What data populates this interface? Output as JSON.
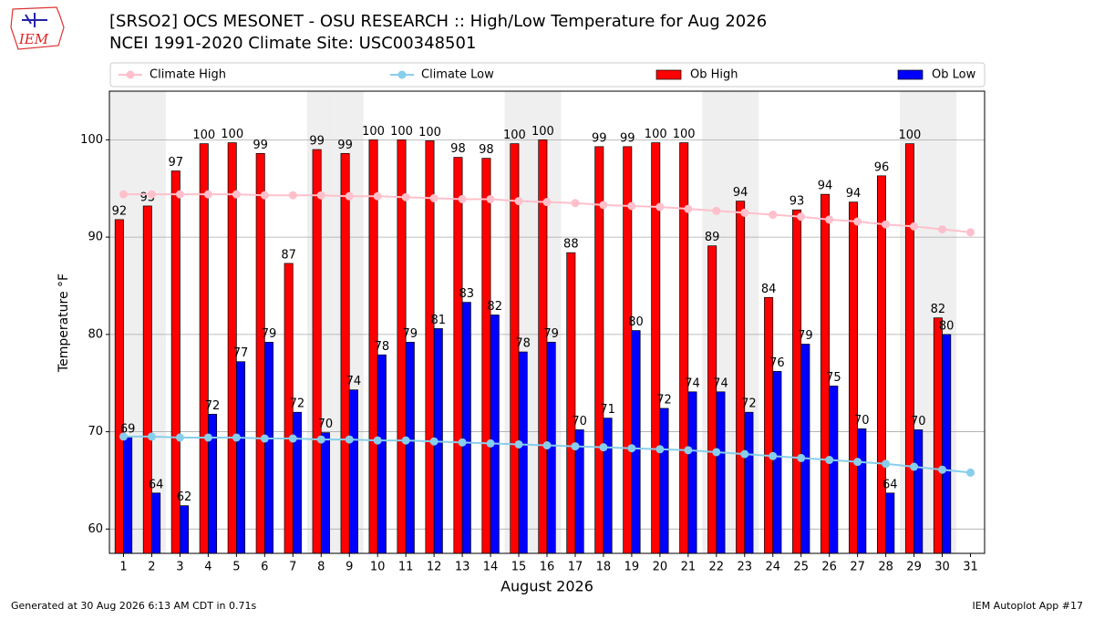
{
  "chart_data": {
    "type": "bar",
    "title": "[SRSO2] OCS MESONET - OSU RESEARCH :: High/Low Temperature for Aug 2026",
    "subtitle": "NCEI 1991-2020 Climate Site: USC00348501",
    "logo": "IEM",
    "y_label": "Temperature °F",
    "x_label": "August 2026",
    "footer_left": "Generated at 30 Aug 2026 6:13 AM CDT in 0.71s",
    "footer_right": "IEM Autoplot App #17",
    "x": [
      1,
      2,
      3,
      4,
      5,
      6,
      7,
      8,
      9,
      10,
      11,
      12,
      13,
      14,
      15,
      16,
      17,
      18,
      19,
      20,
      21,
      22,
      23,
      24,
      25,
      26,
      27,
      28,
      29,
      30,
      31
    ],
    "xlim": [
      0.5,
      31.5
    ],
    "xticks": [
      1,
      2,
      3,
      4,
      5,
      6,
      7,
      8,
      9,
      10,
      11,
      12,
      13,
      14,
      15,
      16,
      17,
      18,
      19,
      20,
      21,
      22,
      23,
      24,
      25,
      26,
      27,
      28,
      29,
      30,
      31
    ],
    "ylim": [
      57.5,
      105
    ],
    "yticks": [
      60,
      70,
      80,
      90,
      100
    ],
    "grid": true,
    "shaded_days": [
      1,
      2,
      8,
      9,
      15,
      16,
      22,
      23,
      29,
      30
    ],
    "shade_color": "#efefef",
    "series": [
      {
        "name": "Climate High",
        "kind": "line",
        "color": "#ffc0cb",
        "values": [
          94.4,
          94.4,
          94.4,
          94.4,
          94.4,
          94.3,
          94.3,
          94.3,
          94.2,
          94.2,
          94.1,
          94.0,
          93.9,
          93.9,
          93.7,
          93.6,
          93.5,
          93.3,
          93.2,
          93.1,
          92.9,
          92.7,
          92.5,
          92.3,
          92.1,
          91.8,
          91.6,
          91.3,
          91.1,
          90.8,
          90.5
        ]
      },
      {
        "name": "Climate Low",
        "kind": "line",
        "color": "#87ceeb",
        "values": [
          69.5,
          69.5,
          69.4,
          69.4,
          69.4,
          69.3,
          69.3,
          69.2,
          69.2,
          69.1,
          69.1,
          69.0,
          68.9,
          68.8,
          68.7,
          68.6,
          68.5,
          68.4,
          68.3,
          68.2,
          68.1,
          67.9,
          67.7,
          67.5,
          67.3,
          67.1,
          66.9,
          66.7,
          66.4,
          66.1,
          65.8
        ]
      },
      {
        "name": "Ob High",
        "kind": "bar",
        "color": "#ff0000",
        "values": [
          91.8,
          93.2,
          96.8,
          99.6,
          99.7,
          98.6,
          87.3,
          99.0,
          98.6,
          100,
          100,
          99.9,
          98.2,
          98.1,
          99.6,
          100,
          88.4,
          99.3,
          99.3,
          99.7,
          99.7,
          89.1,
          93.7,
          83.8,
          92.8,
          94.4,
          93.6,
          96.3,
          99.6,
          81.7,
          null
        ],
        "value_labels": [
          "92",
          "93",
          "97",
          "100",
          "100",
          "99",
          "87",
          "99",
          "99",
          "100",
          "100",
          "100",
          "98",
          "98",
          "100",
          "100",
          "88",
          "99",
          "99",
          "100",
          "100",
          "89",
          "94",
          "84",
          "93",
          "94",
          "94",
          "96",
          "100",
          "82",
          null
        ]
      },
      {
        "name": "Ob Low",
        "kind": "bar",
        "color": "#0000ff",
        "values": [
          69.4,
          63.7,
          62.4,
          71.8,
          77.2,
          79.2,
          72.0,
          69.9,
          74.3,
          77.9,
          79.2,
          80.6,
          83.3,
          82.0,
          78.2,
          79.2,
          70.2,
          71.4,
          80.4,
          72.4,
          74.1,
          74.1,
          72.0,
          76.2,
          79.0,
          74.7,
          70.3,
          63.7,
          70.2,
          80.0,
          null
        ],
        "value_labels": [
          "69",
          "64",
          "62",
          "72",
          "77",
          "79",
          "72",
          "70",
          "74",
          "78",
          "79",
          "81",
          "83",
          "82",
          "78",
          "79",
          "70",
          "71",
          "80",
          "72",
          "74",
          "74",
          "72",
          "76",
          "79",
          "75",
          "70",
          "64",
          "70",
          "80",
          null
        ]
      }
    ]
  }
}
